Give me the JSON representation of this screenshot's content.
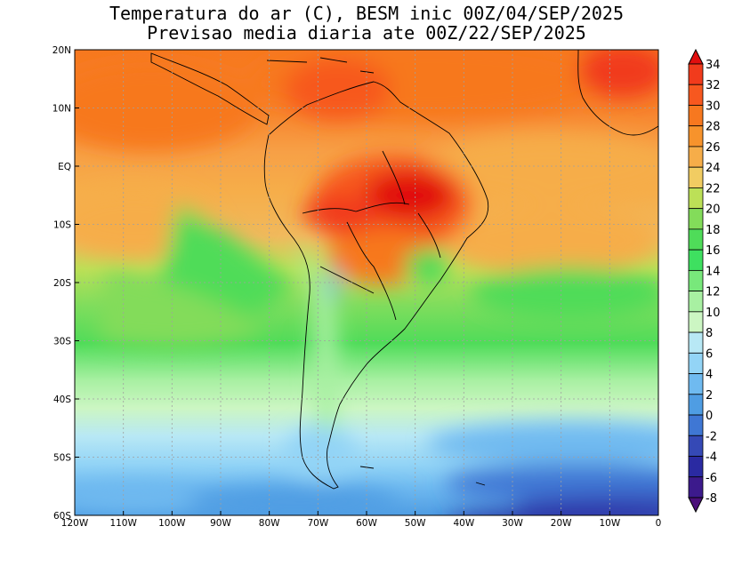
{
  "title": {
    "line1": "Temperatura do ar (C), BESM inic 00Z/04/SEP/2025",
    "line2": "Previsao media diaria ate 00Z/22/SEP/2025"
  },
  "chart_data": {
    "type": "heatmap",
    "variable": "Temperatura do ar (C)",
    "x_ticks": [
      "120W",
      "110W",
      "100W",
      "90W",
      "80W",
      "70W",
      "60W",
      "50W",
      "40W",
      "30W",
      "20W",
      "10W",
      "0"
    ],
    "x_tick_values": [
      -120,
      -110,
      -100,
      -90,
      -80,
      -70,
      -60,
      -50,
      -40,
      -30,
      -20,
      -10,
      0
    ],
    "y_ticks": [
      "20N",
      "10N",
      "EQ",
      "10S",
      "20S",
      "30S",
      "40S",
      "50S",
      "60S"
    ],
    "y_tick_values": [
      20,
      10,
      0,
      -10,
      -20,
      -30,
      -40,
      -50,
      -60
    ],
    "xlim": [
      -120,
      0
    ],
    "ylim": [
      -60,
      20
    ],
    "grid": true,
    "colorbar": {
      "labels": [
        "34",
        "32",
        "30",
        "28",
        "26",
        "24",
        "22",
        "20",
        "18",
        "16",
        "14",
        "12",
        "10",
        "8",
        "6",
        "4",
        "2",
        "0",
        "-2",
        "-4",
        "-6",
        "-8"
      ],
      "colors": [
        "#e10f0f",
        "#f13b1c",
        "#f7581f",
        "#f7781f",
        "#f7932c",
        "#f6ad49",
        "#f1cc62",
        "#bce057",
        "#83dc5a",
        "#4fdc59",
        "#3ee060",
        "#78e87b",
        "#a8f0a2",
        "#ccf6c3",
        "#b8e8f5",
        "#93d4f6",
        "#6fbaf0",
        "#4f9de3",
        "#3f77d4",
        "#3549b6",
        "#2a2aa2",
        "#3c1a8c",
        "#4b0f7a"
      ]
    }
  }
}
